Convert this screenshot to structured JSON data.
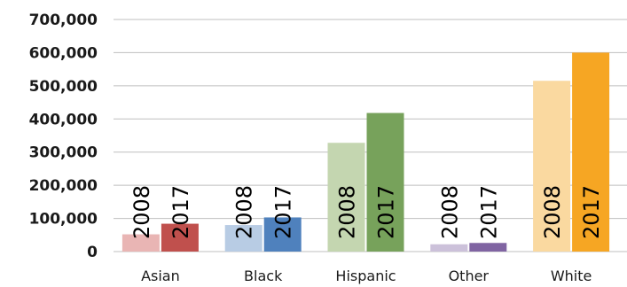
{
  "chart_data": {
    "type": "bar",
    "title": "",
    "xlabel": "",
    "ylabel": "",
    "ylim": [
      0,
      700000
    ],
    "yticks": [
      0,
      100000,
      200000,
      300000,
      400000,
      500000,
      600000,
      700000
    ],
    "ytick_labels": [
      "0",
      "100,000",
      "200,000",
      "300,000",
      "400,000",
      "500,000",
      "600,000",
      "700,000"
    ],
    "grid": true,
    "legend": "none",
    "categories": [
      "Asian",
      "Black",
      "Hispanic",
      "Other",
      "White"
    ],
    "series": [
      {
        "values": [
          52000,
          80000,
          328000,
          22000,
          515000
        ],
        "colors": [
          "#e9b5b4",
          "#b8cce4",
          "#c4d6b0",
          "#ccc1da",
          "#fad9a0"
        ]
      },
      {
        "values": [
          84000,
          103000,
          418000,
          26000,
          600000
        ],
        "colors": [
          "#c0504d",
          "#4f81bd",
          "#77a25b",
          "#8064a2",
          "#f6a623"
        ]
      }
    ],
    "bar_labels": [
      "2008",
      "2017"
    ]
  }
}
